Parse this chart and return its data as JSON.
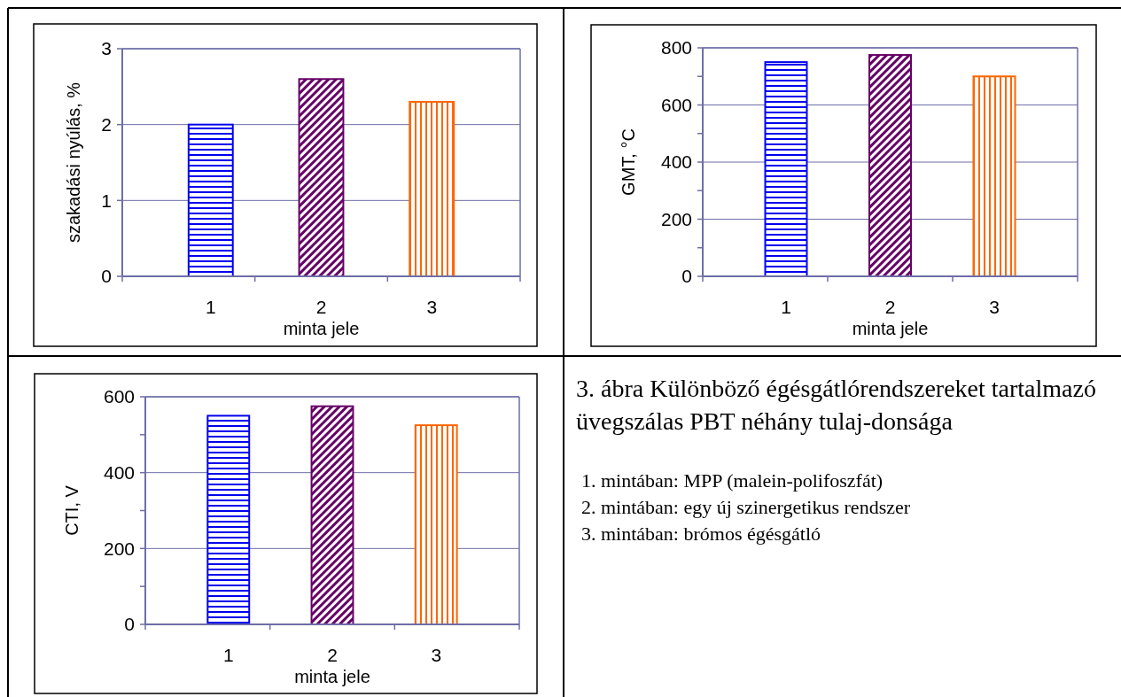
{
  "chart_data": [
    {
      "type": "bar",
      "xlabel": "minta jele",
      "ylabel": "szakadási nyúlás, %",
      "categories": [
        "1",
        "2",
        "3"
      ],
      "values": [
        2.0,
        2.6,
        2.3
      ],
      "colors": [
        "#0000ee",
        "#660066",
        "#ff6600"
      ],
      "ylim": [
        0,
        3
      ],
      "yticks": [
        0,
        1,
        2,
        3
      ],
      "grid": "y"
    },
    {
      "type": "bar",
      "xlabel": "minta jele",
      "ylabel": "GMT, °C",
      "categories": [
        "1",
        "2",
        "3"
      ],
      "values": [
        750,
        775,
        700
      ],
      "colors": [
        "#0000ee",
        "#660066",
        "#ff6600"
      ],
      "ylim": [
        0,
        800
      ],
      "yticks": [
        0,
        {
          "value": 100,
          "label": null
        },
        200,
        {
          "value": 300,
          "label": null
        },
        400,
        {
          "value": 500,
          "label": null
        },
        600,
        {
          "value": 700,
          "label": null
        },
        800
      ],
      "grid": "y"
    },
    {
      "type": "bar",
      "xlabel": "minta jele",
      "ylabel": "CTI, V",
      "categories": [
        "1",
        "2",
        "3"
      ],
      "values": [
        550,
        575,
        525
      ],
      "colors": [
        "#0000ee",
        "#660066",
        "#ff6600"
      ],
      "ylim": [
        0,
        600
      ],
      "yticks": [
        0,
        {
          "value": 100,
          "label": null
        },
        200,
        {
          "value": 300,
          "label": null
        },
        400,
        {
          "value": 500,
          "label": null
        },
        600
      ],
      "grid": "y"
    },
    {
      "type": "other",
      "title": "3. ábra Különböző égésgátlórendszereket tartalmazó üvegszálas PBT néhány tulaj-donsága",
      "annotations": [
        "1. mintában: MPP (malein-polifoszfát)",
        "2. mintában: egy új szinergetikus rendszer",
        "3. mintában: brómos égésgátló"
      ]
    }
  ]
}
